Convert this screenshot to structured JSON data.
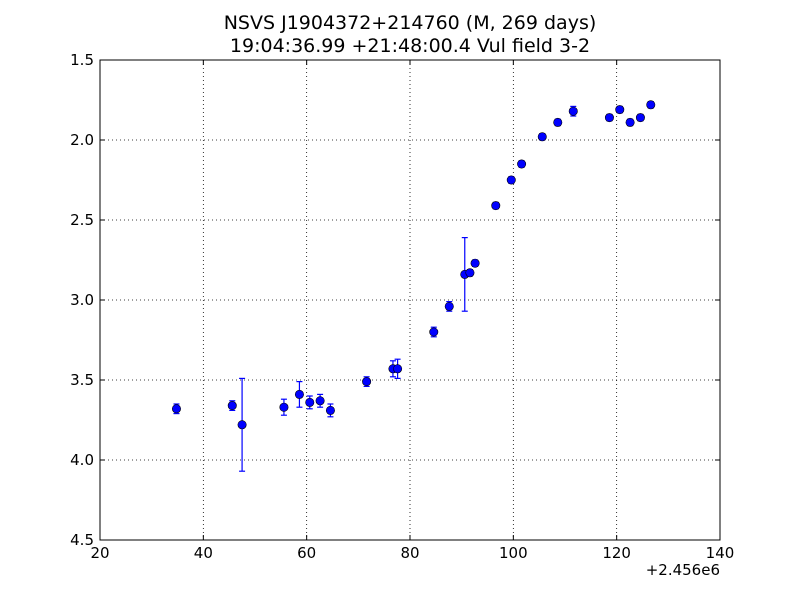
{
  "chart_data": {
    "type": "scatter",
    "title_line1": "NSVS J1904372+214760 (M, 269 days)",
    "title_line2": "19:04:36.99 +21:48:00.4 Vul field 3-2",
    "xlabel": "",
    "ylabel": "",
    "x_offset_label": "+2.456e6",
    "xlim": [
      20,
      140
    ],
    "ylim": [
      4.5,
      1.5
    ],
    "y_inverted": true,
    "grid": true,
    "marker_color": "#0000ff",
    "x_ticks": [
      20,
      40,
      60,
      80,
      100,
      120,
      140
    ],
    "x_tick_labels": [
      "20",
      "40",
      "60",
      "80",
      "100",
      "120",
      "140"
    ],
    "y_ticks": [
      1.5,
      2.0,
      2.5,
      3.0,
      3.5,
      4.0,
      4.5
    ],
    "y_tick_labels": [
      "1.5",
      "2.0",
      "2.5",
      "3.0",
      "3.5",
      "4.0",
      "4.5"
    ],
    "points": [
      {
        "x": 34.8,
        "y": 3.68,
        "err": 0.03
      },
      {
        "x": 45.6,
        "y": 3.66,
        "err": 0.03
      },
      {
        "x": 47.5,
        "y": 3.78,
        "err": 0.29
      },
      {
        "x": 55.6,
        "y": 3.67,
        "err": 0.05
      },
      {
        "x": 58.6,
        "y": 3.59,
        "err": 0.08
      },
      {
        "x": 60.6,
        "y": 3.64,
        "err": 0.04
      },
      {
        "x": 62.6,
        "y": 3.63,
        "err": 0.04
      },
      {
        "x": 64.6,
        "y": 3.69,
        "err": 0.04
      },
      {
        "x": 71.6,
        "y": 3.51,
        "err": 0.03
      },
      {
        "x": 76.7,
        "y": 3.43,
        "err": 0.05
      },
      {
        "x": 77.6,
        "y": 3.43,
        "err": 0.06
      },
      {
        "x": 84.6,
        "y": 3.2,
        "err": 0.03
      },
      {
        "x": 87.6,
        "y": 3.04,
        "err": 0.03
      },
      {
        "x": 90.6,
        "y": 2.84,
        "err": 0.23
      },
      {
        "x": 91.6,
        "y": 2.83,
        "err": 0.02
      },
      {
        "x": 92.6,
        "y": 2.77,
        "err": 0.02
      },
      {
        "x": 96.6,
        "y": 2.41,
        "err": 0.02
      },
      {
        "x": 99.6,
        "y": 2.25,
        "err": 0.02
      },
      {
        "x": 101.6,
        "y": 2.15,
        "err": 0.02
      },
      {
        "x": 105.6,
        "y": 1.98,
        "err": 0.02
      },
      {
        "x": 108.6,
        "y": 1.89,
        "err": 0.02
      },
      {
        "x": 111.6,
        "y": 1.82,
        "err": 0.03
      },
      {
        "x": 118.6,
        "y": 1.86,
        "err": 0.02
      },
      {
        "x": 120.6,
        "y": 1.81,
        "err": 0.02
      },
      {
        "x": 122.6,
        "y": 1.89,
        "err": 0.02
      },
      {
        "x": 124.6,
        "y": 1.86,
        "err": 0.02
      },
      {
        "x": 126.6,
        "y": 1.78,
        "err": 0.02
      }
    ]
  }
}
